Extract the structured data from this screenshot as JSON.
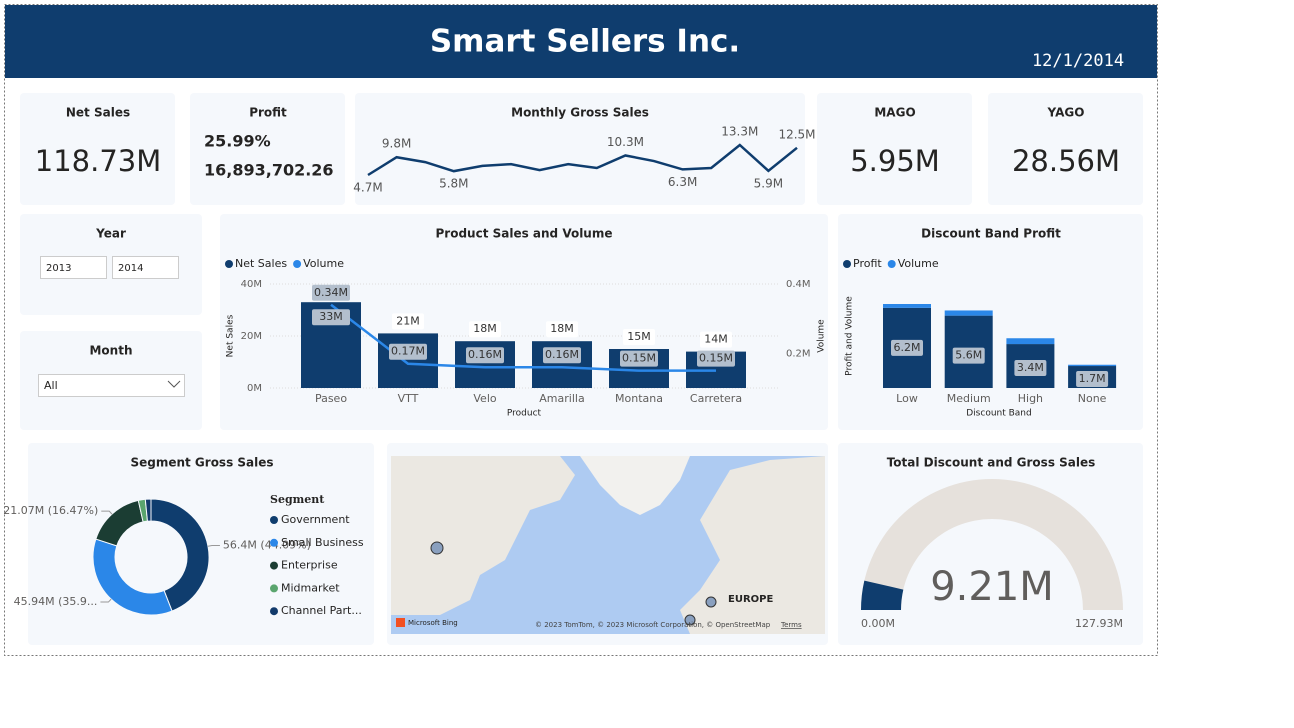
{
  "header": {
    "title": "Smart Sellers Inc.",
    "date": "12/1/2014"
  },
  "cards": [
    {
      "title": "Net Sales",
      "value": "118.73M"
    },
    {
      "title": "MAGO",
      "value": "5.95M"
    },
    {
      "title": "YAGO",
      "value": "28.56M"
    }
  ],
  "profit_card": {
    "title": "Profit",
    "percent": "25.99%",
    "amount": "16,893,702.26"
  },
  "slicers": {
    "year": {
      "title": "Year",
      "options": [
        "2013",
        "2014"
      ]
    },
    "month": {
      "title": "Month",
      "selected": "All"
    }
  },
  "map": {
    "label": "EUROPE",
    "logo": "Microsoft Bing",
    "credits": "© 2023 TomTom, © 2023 Microsoft Corporation, © OpenStreetMap",
    "terms": "Terms"
  },
  "chart_data": [
    {
      "type": "line",
      "title": "Monthly Gross Sales",
      "color": "#0f3d6e",
      "values": [
        4.7,
        9.8,
        8.4,
        5.8,
        7.3,
        7.8,
        6.1,
        7.8,
        6.7,
        10.3,
        8.7,
        6.3,
        6.7,
        13.3,
        5.9,
        12.5
      ],
      "value_labels": [
        "4.7M",
        "9.8M",
        null,
        "5.8M",
        null,
        null,
        null,
        null,
        null,
        "10.3M",
        null,
        "6.3M",
        null,
        "13.3M",
        "5.9M",
        "12.5M"
      ]
    },
    {
      "type": "combo",
      "title": "Product Sales and Volume",
      "x_label": "Product",
      "y_label": "Net Sales",
      "y2_label": "Volume",
      "categories": [
        "Paseo",
        "VTT",
        "Velo",
        "Amarilla",
        "Montana",
        "Carretera"
      ],
      "series": [
        {
          "name": "Net Sales",
          "type": "bar",
          "color": "#0f3d6e",
          "values": [
            33,
            21,
            18,
            18,
            15,
            14
          ],
          "value_labels": [
            "33M",
            "21M",
            "18M",
            "18M",
            "15M",
            "14M"
          ]
        },
        {
          "name": "Volume",
          "type": "line",
          "axis": "y2",
          "color": "#2b87e8",
          "values": [
            0.34,
            0.17,
            0.16,
            0.16,
            0.15,
            0.15
          ],
          "value_labels": [
            "0.34M",
            "0.17M",
            "0.16M",
            "0.16M",
            "0.15M",
            "0.15M"
          ]
        }
      ],
      "ylim": [
        0,
        40
      ],
      "yticks": [
        {
          "value": 0,
          "label": "0M"
        },
        {
          "value": 20,
          "label": "20M"
        },
        {
          "value": 40,
          "label": "40M"
        }
      ],
      "y2lim": [
        0.1,
        0.4
      ],
      "y2ticks": [
        {
          "value": 0.2,
          "label": "0.2M"
        },
        {
          "value": 0.4,
          "label": "0.4M"
        }
      ],
      "grid": true,
      "legend": "top-left"
    },
    {
      "type": "bar",
      "stacked": true,
      "title": "Discount Band Profit",
      "x_label": "Discount Band",
      "y_label": "Profit and Volume",
      "categories": [
        "Low",
        "Medium",
        "High",
        "None"
      ],
      "series": [
        {
          "name": "Profit",
          "color": "#0f3d6e",
          "values": [
            6.2,
            5.6,
            3.4,
            1.7
          ],
          "value_labels": [
            "6.2M",
            "5.6M",
            "3.4M",
            "1.7M"
          ]
        },
        {
          "name": "Volume",
          "color": "#2b87e8",
          "values": [
            0.3,
            0.4,
            0.45,
            0.1
          ]
        }
      ],
      "legend": "top-left"
    },
    {
      "type": "donut",
      "title": "Segment Gross Sales",
      "legend_title": "Segment",
      "categories": [
        "Government",
        "Small Business",
        "Enterprise",
        "Midmarket",
        "Channel Part..."
      ],
      "values": [
        56.4,
        45.94,
        21.07,
        2.5,
        2.0
      ],
      "value_labels": [
        "56.4M (44.09%)",
        "45.94M (35.9...",
        "21.07M (16.47%)",
        null,
        null
      ],
      "colors": [
        "#0f3d6e",
        "#2b87e8",
        "#1b3d33",
        "#5aa56e",
        "#123a6b"
      ]
    },
    {
      "type": "gauge",
      "title": "Total Discount and Gross Sales",
      "value": 9.21,
      "value_label": "9.21M",
      "ylim": [
        0,
        127.93
      ],
      "yticks": [
        {
          "value": 0,
          "label": "0.00M"
        },
        {
          "value": 127.93,
          "label": "127.93M"
        }
      ],
      "color": "#0f3d6e",
      "track_color": "#e6e1dc"
    }
  ]
}
